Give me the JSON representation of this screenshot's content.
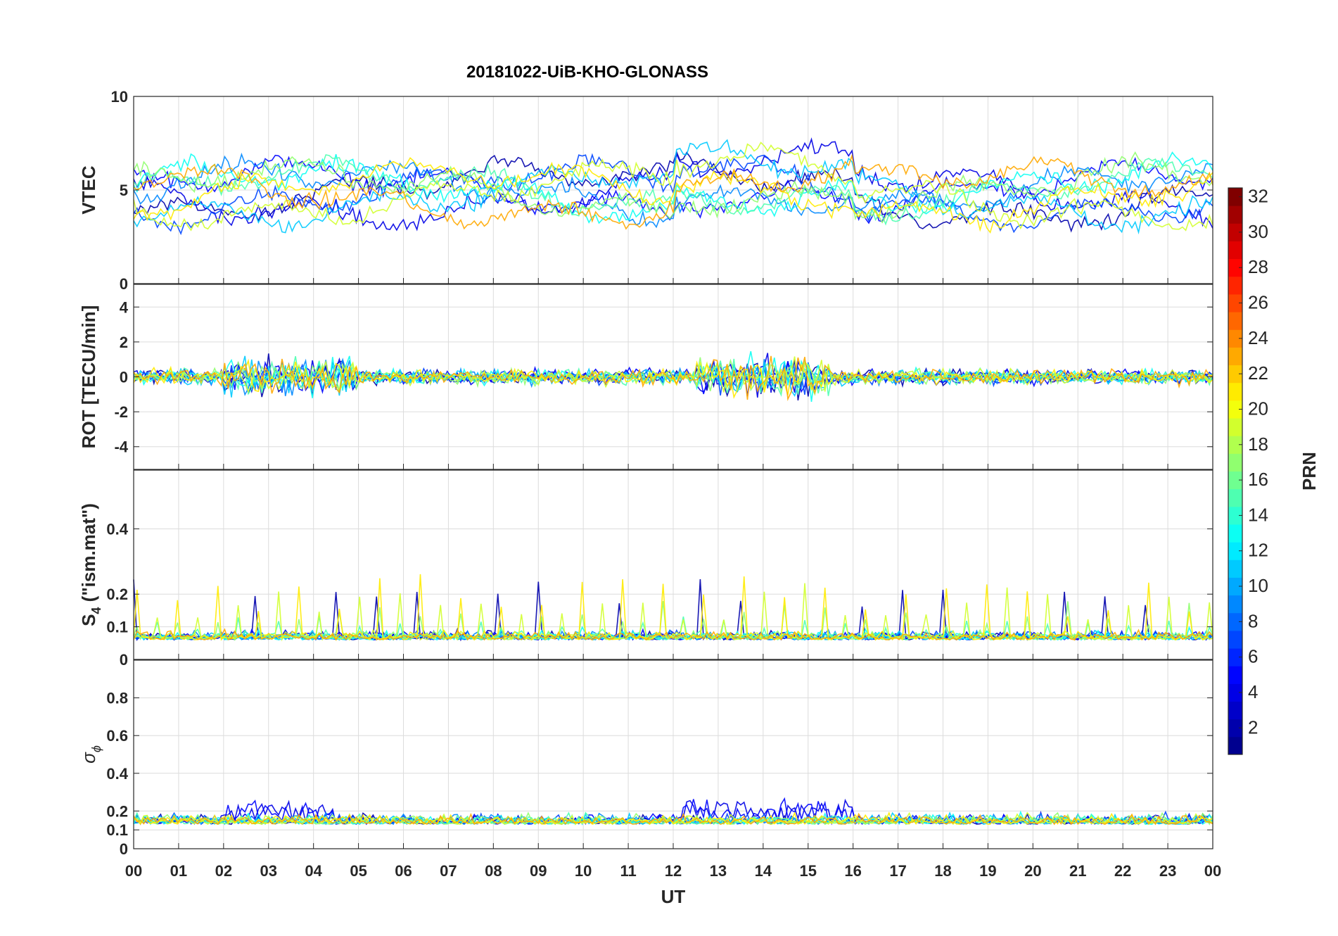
{
  "chart_data": {
    "type": "line",
    "title": "20181022-UiB-KHO-GLONASS",
    "xlabel": "UT",
    "x_tick_labels": [
      "00",
      "01",
      "02",
      "03",
      "04",
      "05",
      "06",
      "07",
      "08",
      "09",
      "10",
      "11",
      "12",
      "13",
      "14",
      "15",
      "16",
      "17",
      "18",
      "19",
      "20",
      "21",
      "22",
      "23",
      "00"
    ],
    "xlim_hours": [
      0,
      24
    ],
    "grid": true,
    "panels": [
      {
        "ylabel": "VTEC",
        "ylim": [
          0,
          10
        ],
        "yticks": [
          0,
          5,
          10
        ],
        "yticklabels": [
          "0",
          "5",
          "10"
        ]
      },
      {
        "ylabel": "ROT [TECU/min]",
        "ylim": [
          -5.3,
          5.3
        ],
        "yticks": [
          -4,
          -2,
          0,
          2,
          4
        ],
        "yticklabels": [
          "-4",
          "-2",
          "0",
          "2",
          "4"
        ]
      },
      {
        "ylabel_parts": [
          "S",
          "4",
          " (\"ism.mat\")"
        ],
        "ylim": [
          0,
          0.58
        ],
        "yticks": [
          0,
          0.1,
          0.2,
          0.4
        ],
        "yticklabels": [
          "0",
          "0.1",
          "0.2",
          "0.4"
        ]
      },
      {
        "ylabel_parts": [
          "σ",
          "ϕ"
        ],
        "ylim": [
          0,
          1
        ],
        "yticks": [
          0,
          0.1,
          0.2,
          0.4,
          0.6,
          0.8
        ],
        "yticklabels": [
          "0",
          "0.1",
          "0.2",
          "0.4",
          "0.6",
          "0.8"
        ]
      }
    ],
    "colorbar": {
      "label": "PRN",
      "range": [
        1,
        32
      ],
      "tick_labels": [
        "2",
        "4",
        "6",
        "8",
        "10",
        "12",
        "14",
        "16",
        "18",
        "20",
        "22",
        "24",
        "26",
        "28",
        "30",
        "32"
      ],
      "colormap": "jet",
      "colors": [
        "#00008f",
        "#0000ff",
        "#0080ff",
        "#00ffff",
        "#80ff80",
        "#ffff00",
        "#ff8000",
        "#ff0000",
        "#800000"
      ]
    },
    "series_prn": [
      2,
      4,
      5,
      7,
      9,
      11,
      13,
      15,
      17,
      19,
      21,
      23
    ]
  }
}
